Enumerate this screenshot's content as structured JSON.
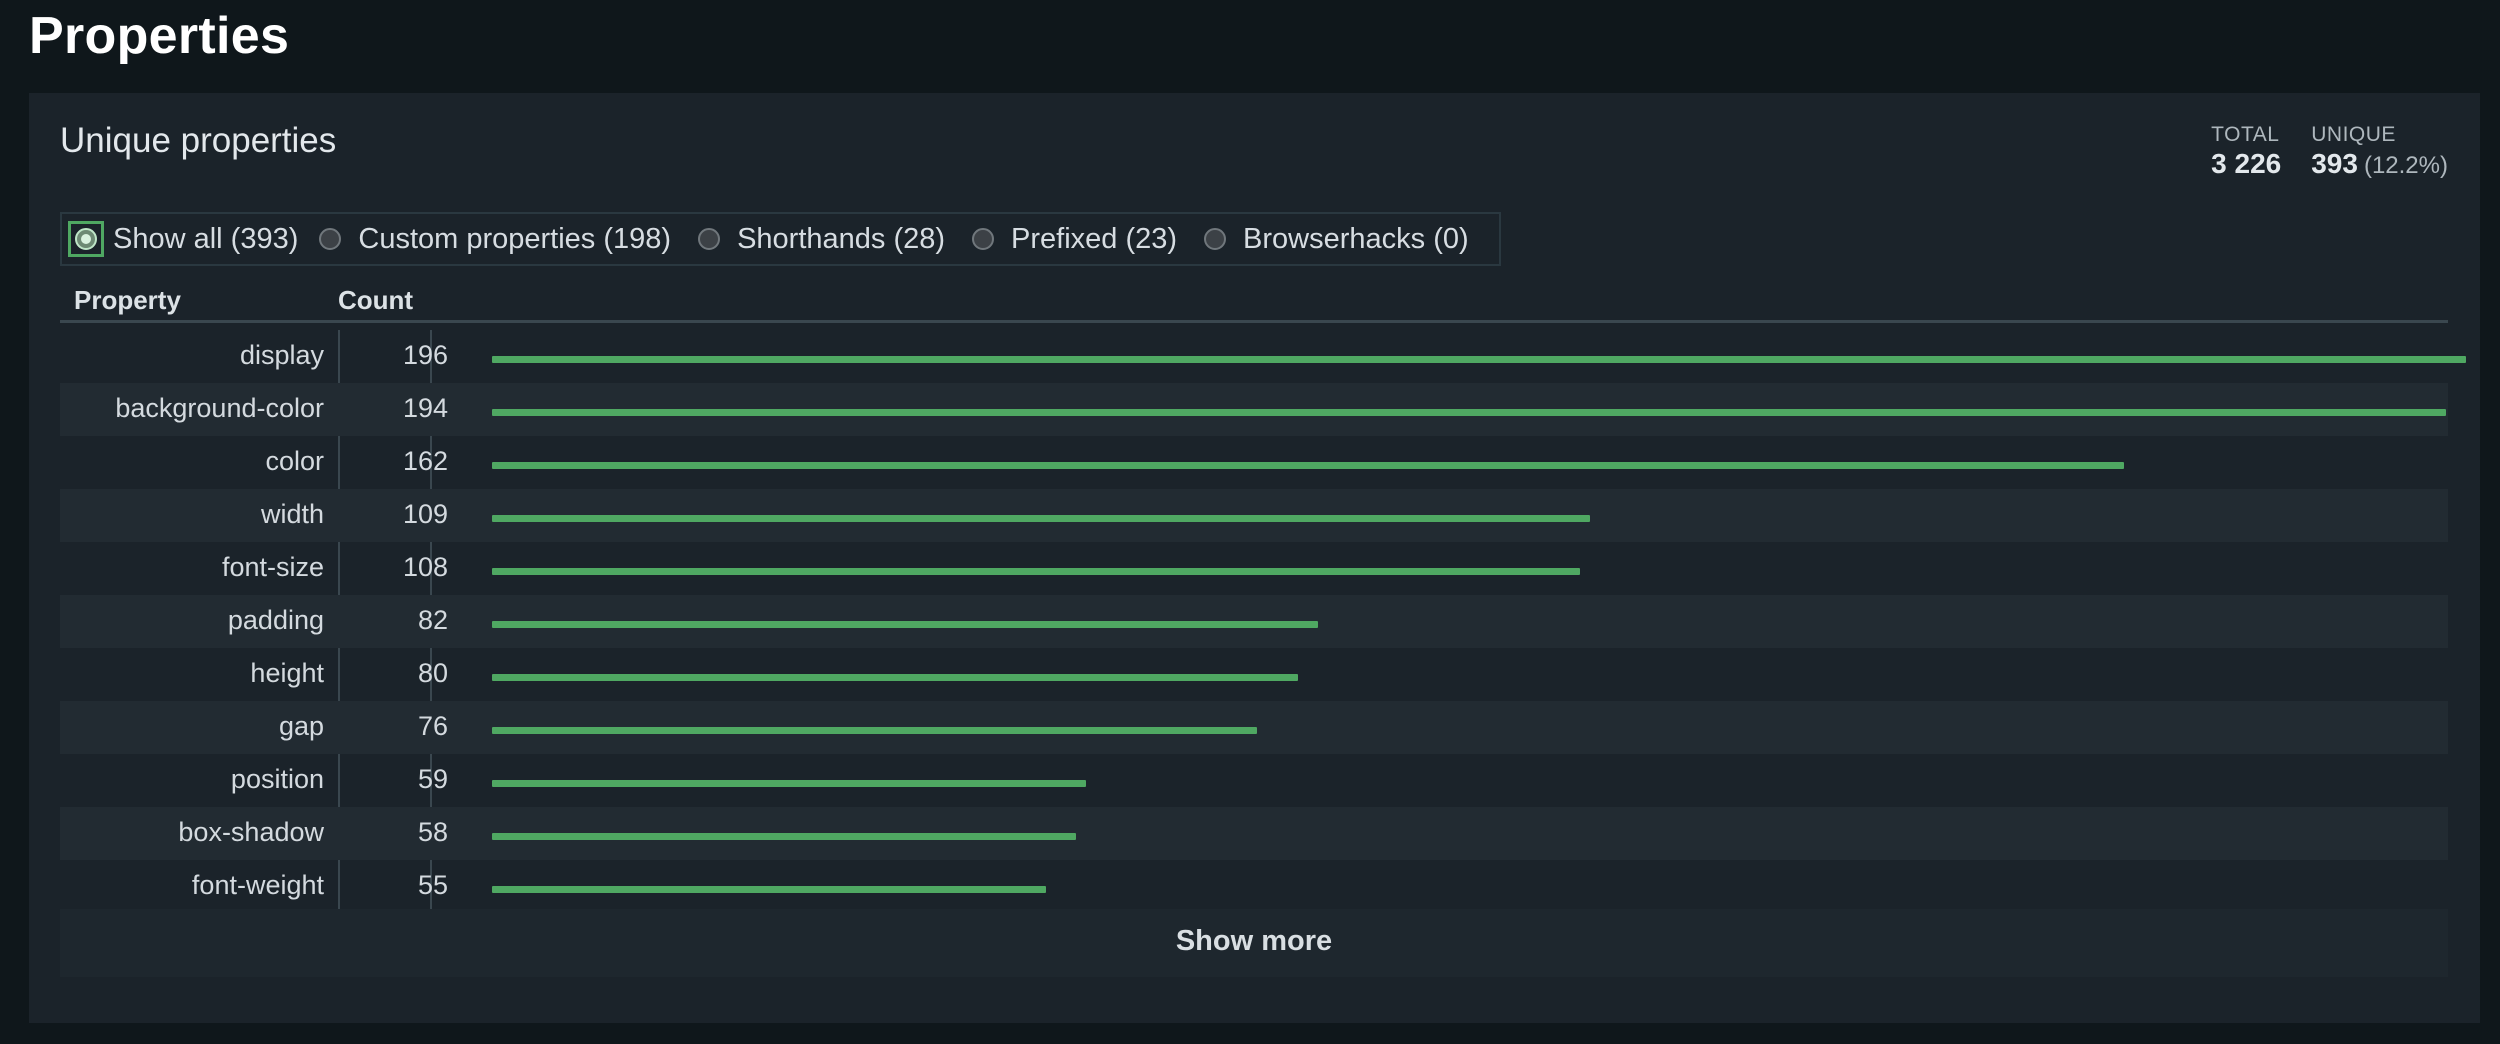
{
  "page_title": "Properties",
  "panel": {
    "title": "Unique properties",
    "stats": {
      "total_label": "TOTAL",
      "total_value": "3 226",
      "unique_label": "UNIQUE",
      "unique_value": "393",
      "unique_pct": "(12.2%)"
    },
    "filters": [
      {
        "label": "Show all (393)",
        "selected": true
      },
      {
        "label": "Custom properties (198)",
        "selected": false
      },
      {
        "label": "Shorthands (28)",
        "selected": false
      },
      {
        "label": "Prefixed (23)",
        "selected": false
      },
      {
        "label": "Browserhacks (0)",
        "selected": false
      }
    ],
    "table": {
      "col_property": "Property",
      "col_count": "Count",
      "max_count": 196,
      "rows": [
        {
          "property": "display",
          "count": 196
        },
        {
          "property": "background-color",
          "count": 194
        },
        {
          "property": "color",
          "count": 162
        },
        {
          "property": "width",
          "count": 109
        },
        {
          "property": "font-size",
          "count": 108
        },
        {
          "property": "padding",
          "count": 82
        },
        {
          "property": "height",
          "count": 80
        },
        {
          "property": "gap",
          "count": 76
        },
        {
          "property": "position",
          "count": 59
        },
        {
          "property": "box-shadow",
          "count": 58
        },
        {
          "property": "font-weight",
          "count": 55
        }
      ]
    },
    "show_more_label": "Show more"
  },
  "colors": {
    "bar": "#4fa862",
    "background": "#0f171b",
    "panel": "#1b232a"
  }
}
